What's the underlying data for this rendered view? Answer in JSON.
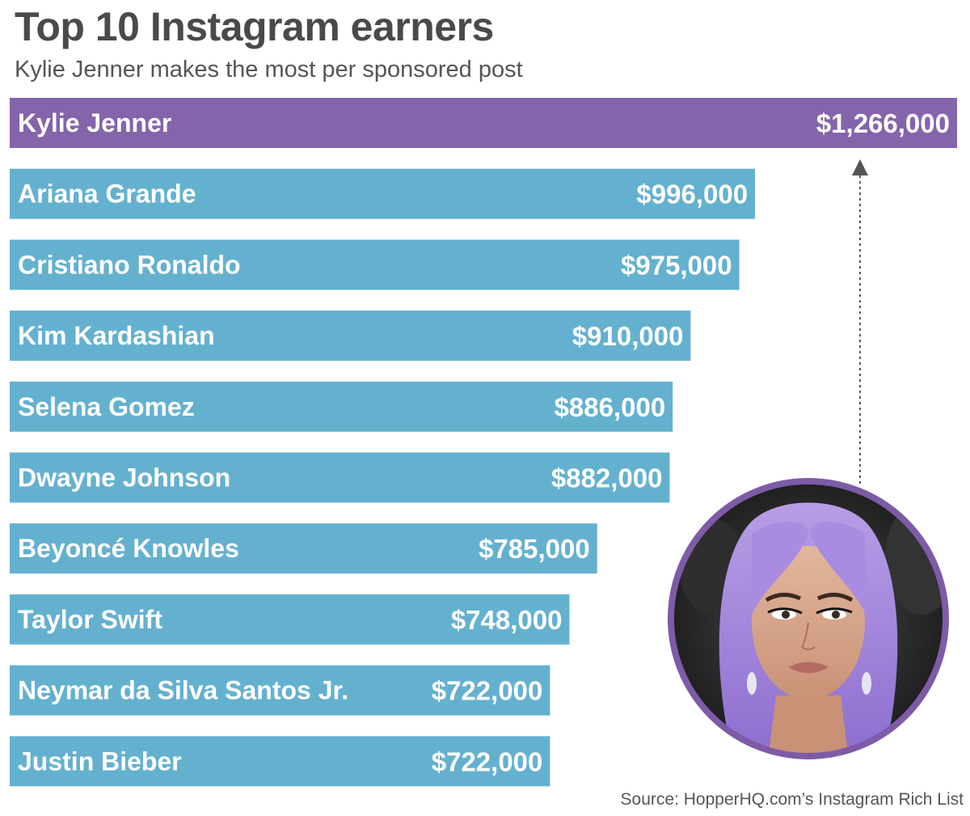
{
  "title": "Top 10 Instagram earners",
  "subtitle": "Kylie Jenner makes the most per sponsored post",
  "source": "Source: HopperHQ.com’s Instagram Rich List",
  "colors": {
    "highlight": "#8464ab",
    "bar": "#64b1cf",
    "photo_ring": "#7d5ba6",
    "text": "#4a4a4a"
  },
  "photo": {
    "icon": "portrait-photo",
    "subject": "Kylie Jenner"
  },
  "chart_data": {
    "type": "bar",
    "orientation": "horizontal",
    "title": "Top 10 Instagram earners",
    "subtitle": "Kylie Jenner makes the most per sponsored post",
    "grid": false,
    "legend": "none",
    "xlim": [
      0,
      1266000
    ],
    "categories": [
      "Kylie Jenner",
      "Ariana Grande",
      "Cristiano Ronaldo",
      "Kim Kardashian",
      "Selena Gomez",
      "Dwayne Johnson",
      "Beyoncé Knowles",
      "Taylor Swift",
      "Neymar da Silva Santos Jr.",
      "Justin Bieber"
    ],
    "values": [
      1266000,
      996000,
      975000,
      910000,
      886000,
      882000,
      785000,
      748000,
      722000,
      722000
    ],
    "value_labels": [
      "$1,266,000",
      "$996,000",
      "$975,000",
      "$910,000",
      "$886,000",
      "$882,000",
      "$785,000",
      "$748,000",
      "$722,000",
      "$722,000"
    ],
    "highlight_index": 0
  }
}
